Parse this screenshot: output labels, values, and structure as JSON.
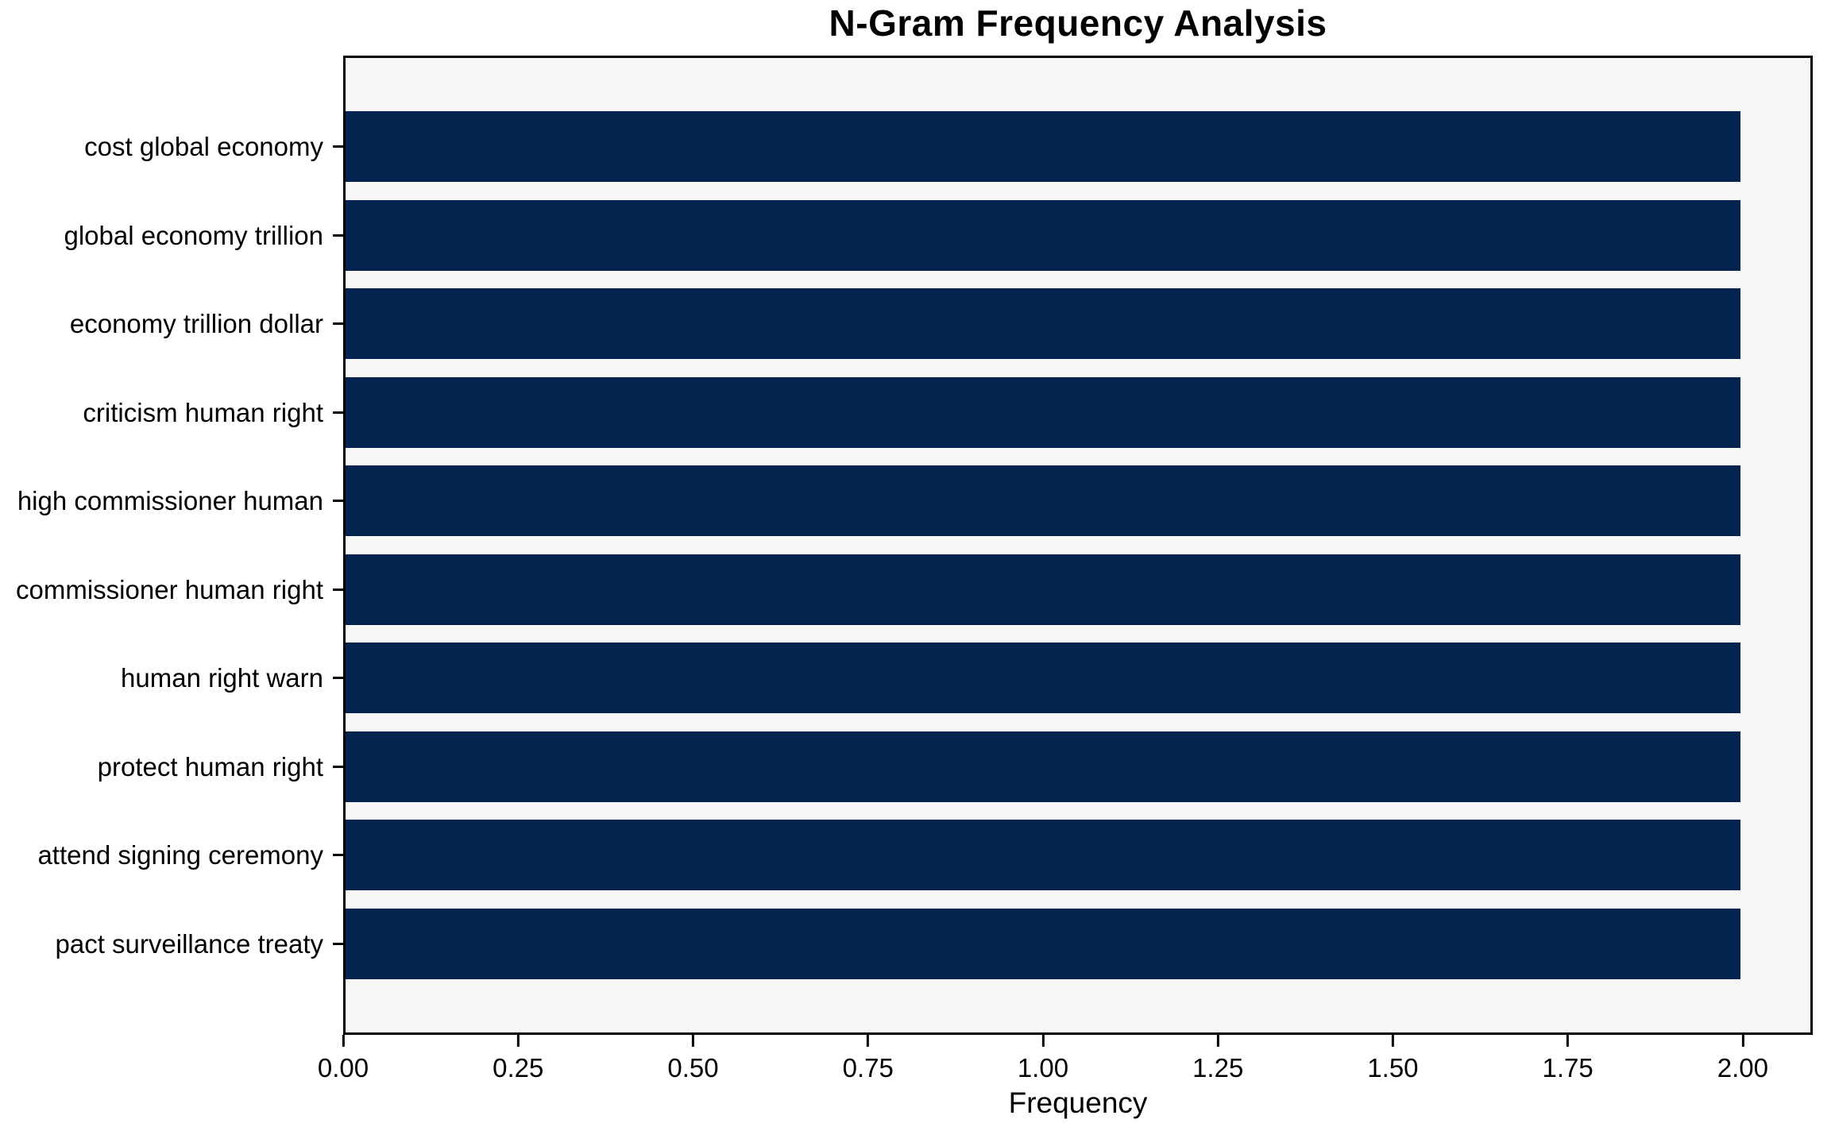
{
  "colors": {
    "figure_bg": "#ffffff",
    "plot_bg": "#f7f7f7",
    "bar": "#02244e",
    "axis": "#000000",
    "text": "#000000"
  },
  "chart_data": {
    "type": "bar",
    "orientation": "horizontal",
    "title": "N-Gram Frequency Analysis",
    "xlabel": "Frequency",
    "ylabel": "",
    "categories": [
      "cost global economy",
      "global economy trillion",
      "economy trillion dollar",
      "criticism human right",
      "high commissioner human",
      "commissioner human right",
      "human right warn",
      "protect human right",
      "attend signing ceremony",
      "pact surveillance treaty"
    ],
    "values": [
      2,
      2,
      2,
      2,
      2,
      2,
      2,
      2,
      2,
      2
    ],
    "xlim": [
      0,
      2.1
    ],
    "xticks": [
      0,
      0.25,
      0.5,
      0.75,
      1.0,
      1.25,
      1.5,
      1.75,
      2.0
    ],
    "xtick_labels": [
      "0.00",
      "0.25",
      "0.50",
      "0.75",
      "1.00",
      "1.25",
      "1.50",
      "1.75",
      "2.00"
    ],
    "bar_color": "#02244e",
    "bar_height_fraction": 0.8,
    "grid": false,
    "legend": null
  }
}
